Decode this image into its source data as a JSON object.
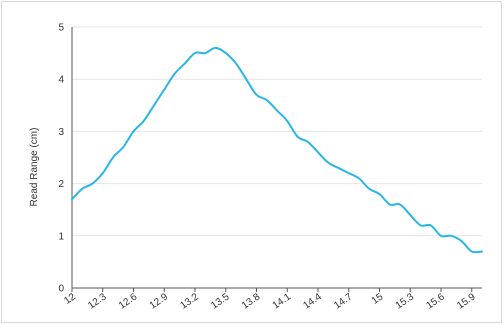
{
  "chart_data": {
    "type": "line",
    "title": "",
    "xlabel": "",
    "ylabel": "Read Range (cm)",
    "x_tick_labels": [
      "12",
      "12.3",
      "12.6",
      "12.9",
      "13.2",
      "13.5",
      "13.8",
      "14.1",
      "14.4",
      "14.7",
      "15",
      "15.3",
      "15.6",
      "15.9"
    ],
    "y_tick_labels": [
      "0",
      "1",
      "2",
      "3",
      "4",
      "5"
    ],
    "xlim": [
      12,
      16
    ],
    "ylim": [
      0,
      5
    ],
    "grid": true,
    "legend": "none",
    "series_color": "#29b6e6",
    "series": [
      {
        "name": "",
        "x": [
          12.0,
          12.1,
          12.2,
          12.3,
          12.4,
          12.5,
          12.6,
          12.7,
          12.8,
          12.9,
          13.0,
          13.1,
          13.2,
          13.3,
          13.4,
          13.5,
          13.6,
          13.7,
          13.8,
          13.9,
          14.0,
          14.1,
          14.2,
          14.3,
          14.4,
          14.5,
          14.6,
          14.7,
          14.8,
          14.9,
          15.0,
          15.1,
          15.2,
          15.3,
          15.4,
          15.5,
          15.6,
          15.7,
          15.8,
          15.9,
          16.0
        ],
        "y": [
          1.7,
          1.9,
          2.0,
          2.2,
          2.5,
          2.7,
          3.0,
          3.2,
          3.5,
          3.8,
          4.1,
          4.3,
          4.5,
          4.5,
          4.6,
          4.5,
          4.3,
          4.0,
          3.7,
          3.6,
          3.4,
          3.2,
          2.9,
          2.8,
          2.6,
          2.4,
          2.3,
          2.2,
          2.1,
          1.9,
          1.8,
          1.6,
          1.6,
          1.4,
          1.2,
          1.2,
          1.0,
          1.0,
          0.9,
          0.7,
          0.7
        ]
      }
    ]
  }
}
